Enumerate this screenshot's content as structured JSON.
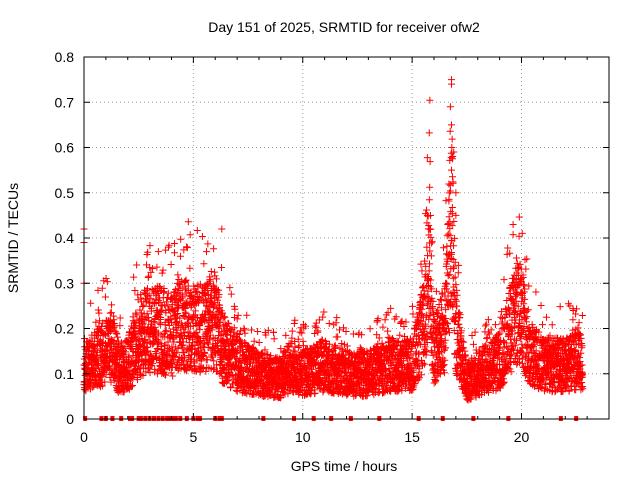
{
  "chart_data": {
    "type": "scatter",
    "title": "Day 151 of 2025, SRMTID for receiver ofw2",
    "xlabel": "GPS time / hours",
    "ylabel": "SRMTID / TECUs",
    "xlim": [
      0,
      24
    ],
    "ylim": [
      0,
      0.8
    ],
    "grid": true,
    "legend": "none",
    "marker": "+",
    "color": "#ff0000",
    "x_ticks": [
      0,
      5,
      10,
      15,
      20
    ],
    "x_tick_labels": [
      "0",
      "5",
      "10",
      "15",
      "20"
    ],
    "y_ticks": [
      0,
      0.1,
      0.2,
      0.3,
      0.4,
      0.5,
      0.6,
      0.7,
      0.8
    ],
    "y_tick_labels": [
      "0",
      "0.1",
      "0.2",
      "0.3",
      "0.4",
      "0.5",
      "0.6",
      "0.7",
      "0.8"
    ],
    "series": [
      {
        "name": "SRMTID",
        "x_range": [
          0,
          22.8
        ],
        "profile": [
          [
            0.0,
            0.1
          ],
          [
            0.1,
            0.12
          ],
          [
            0.5,
            0.13
          ],
          [
            1.0,
            0.15
          ],
          [
            1.3,
            0.16
          ],
          [
            1.6,
            0.11
          ],
          [
            2.0,
            0.12
          ],
          [
            2.5,
            0.18
          ],
          [
            3.0,
            0.2
          ],
          [
            3.5,
            0.2
          ],
          [
            4.0,
            0.18
          ],
          [
            4.5,
            0.22
          ],
          [
            5.0,
            0.2
          ],
          [
            5.5,
            0.2
          ],
          [
            6.0,
            0.22
          ],
          [
            6.3,
            0.16
          ],
          [
            7.0,
            0.12
          ],
          [
            8.0,
            0.1
          ],
          [
            9.0,
            0.09
          ],
          [
            9.5,
            0.12
          ],
          [
            10.0,
            0.1
          ],
          [
            11.0,
            0.12
          ],
          [
            12.0,
            0.1
          ],
          [
            13.0,
            0.1
          ],
          [
            14.0,
            0.12
          ],
          [
            14.5,
            0.12
          ],
          [
            15.0,
            0.12
          ],
          [
            15.5,
            0.2
          ],
          [
            15.8,
            0.35
          ],
          [
            16.0,
            0.15
          ],
          [
            16.5,
            0.2
          ],
          [
            16.8,
            0.45
          ],
          [
            17.0,
            0.2
          ],
          [
            17.5,
            0.08
          ],
          [
            18.0,
            0.1
          ],
          [
            19.0,
            0.13
          ],
          [
            19.5,
            0.2
          ],
          [
            20.0,
            0.25
          ],
          [
            20.3,
            0.15
          ],
          [
            21.0,
            0.12
          ],
          [
            22.0,
            0.12
          ],
          [
            22.8,
            0.13
          ]
        ],
        "noise_fraction": 0.5,
        "spikes": [
          {
            "x": 0.0,
            "y": 0.42
          },
          {
            "x": 0.0,
            "y": 0.39
          },
          {
            "x": 0.0,
            "y": 0.3
          },
          {
            "x": 3.4,
            "y": 0.37
          },
          {
            "x": 6.3,
            "y": 0.42
          },
          {
            "x": 5.6,
            "y": 0.37
          },
          {
            "x": 15.7,
            "y": 0.45
          },
          {
            "x": 15.8,
            "y": 0.42
          },
          {
            "x": 16.8,
            "y": 0.75
          },
          {
            "x": 16.8,
            "y": 0.74
          },
          {
            "x": 16.75,
            "y": 0.69
          },
          {
            "x": 16.8,
            "y": 0.65
          },
          {
            "x": 16.9,
            "y": 0.59
          },
          {
            "x": 16.85,
            "y": 0.58
          },
          {
            "x": 16.8,
            "y": 0.55
          },
          {
            "x": 17.0,
            "y": 0.5
          },
          {
            "x": 17.0,
            "y": 0.45
          },
          {
            "x": 20.0,
            "y": 0.31
          },
          {
            "x": 19.9,
            "y": 0.3
          }
        ],
        "zero_points_x": [
          0.05,
          0.8,
          1.0,
          1.3,
          1.7,
          2.1,
          2.2,
          2.5,
          2.6,
          2.8,
          3.0,
          3.2,
          3.4,
          3.6,
          3.8,
          3.9,
          4.0,
          4.1,
          4.2,
          4.4,
          4.7,
          5.0,
          5.2,
          5.3,
          6.0,
          6.2,
          6.3,
          8.2,
          9.6,
          10.5,
          11.3,
          12.2,
          13.5,
          15.3,
          16.4,
          17.8,
          19.4,
          21.8,
          22.5
        ]
      }
    ]
  }
}
